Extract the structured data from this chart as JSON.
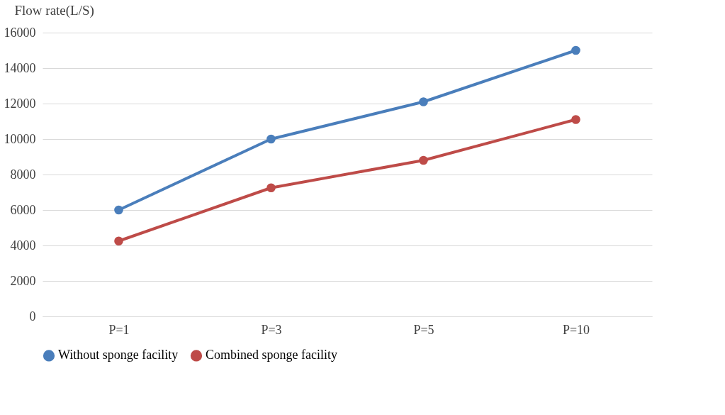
{
  "chart_data": {
    "type": "line",
    "ylabel": "Flow rate(L/S)",
    "categories": [
      "P=1",
      "P=3",
      "P=5",
      "P=10"
    ],
    "series": [
      {
        "name": "Without sponge facility",
        "color": "#4a7ebb",
        "values": [
          6000,
          10000,
          12100,
          15000
        ]
      },
      {
        "name": "Combined sponge facility",
        "color": "#be4b48",
        "values": [
          4250,
          7250,
          8800,
          11100
        ]
      }
    ],
    "ylim": [
      0,
      16000
    ],
    "yticks": [
      0,
      2000,
      4000,
      6000,
      8000,
      10000,
      12000,
      14000,
      16000
    ],
    "grid": "y",
    "legend": "bottom",
    "marker": "circle",
    "line_style": "solid"
  }
}
